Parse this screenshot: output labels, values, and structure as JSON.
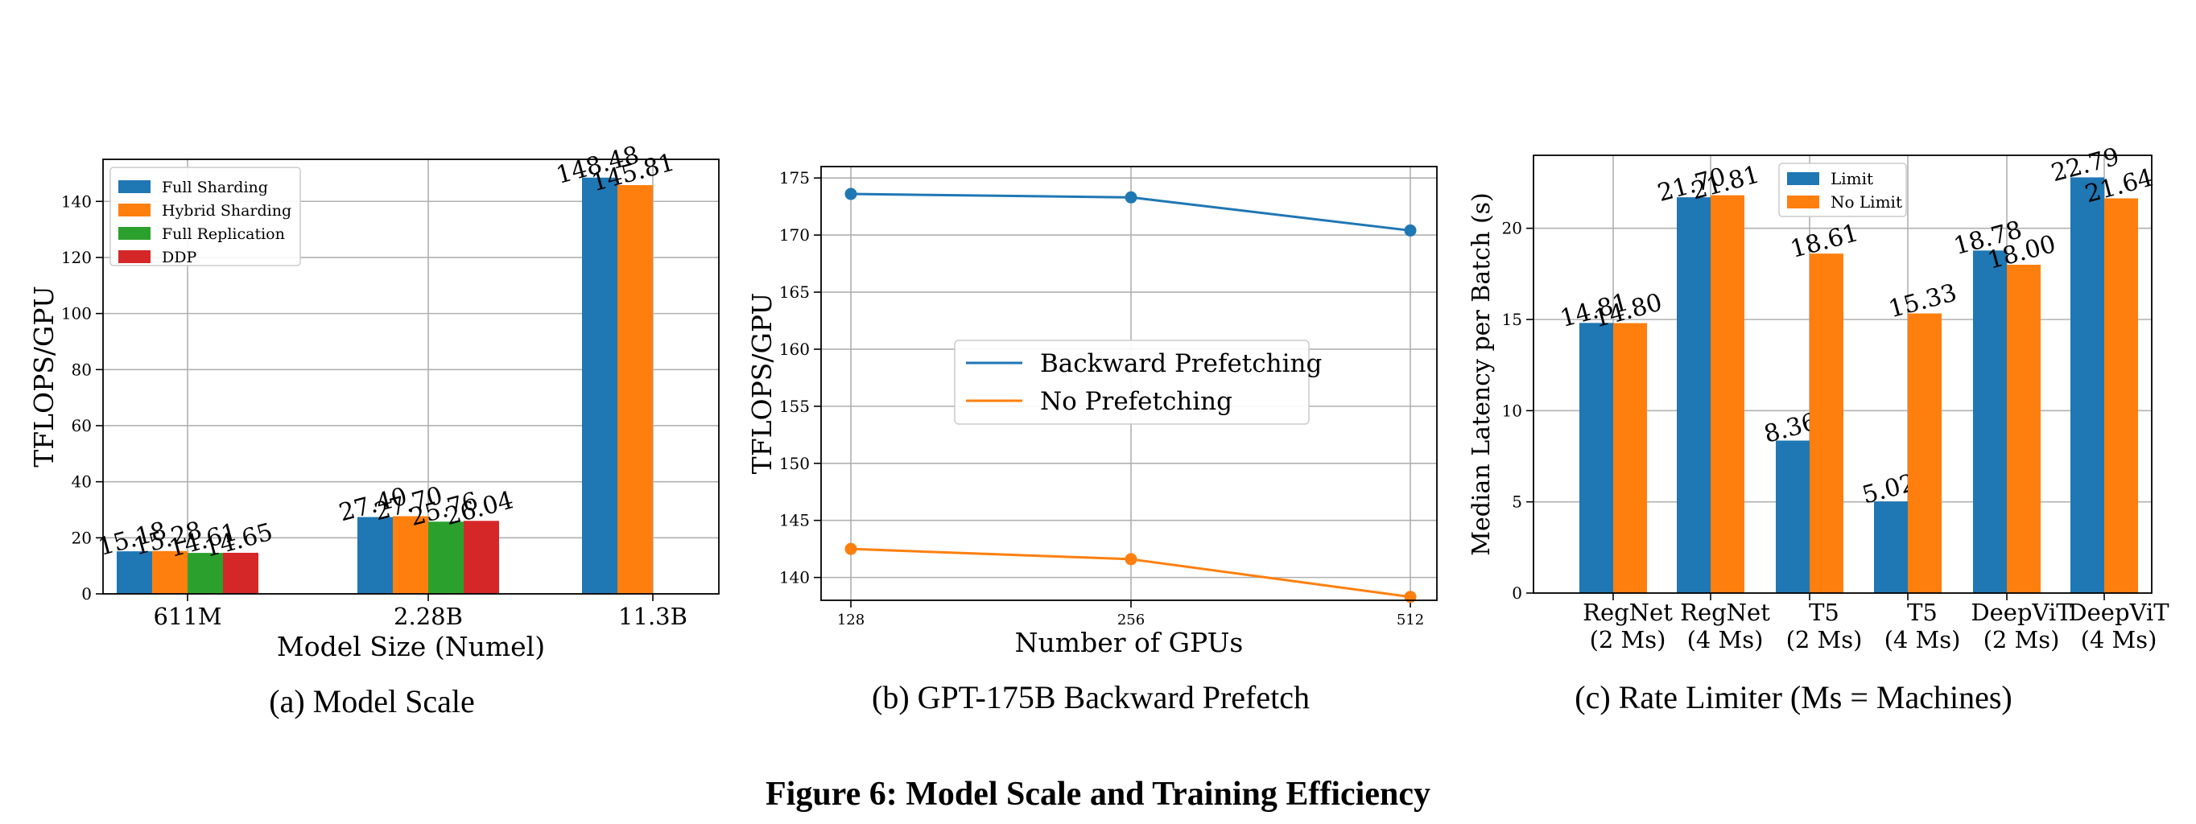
{
  "figure_caption": "Figure 6: Model Scale and Training Efficiency",
  "chart_data": [
    {
      "type": "bar",
      "caption": "(a) Model Scale",
      "xlabel": "Model Size (Numel)",
      "ylabel": "TFLOPS/GPU",
      "categories": [
        "611M",
        "2.28B",
        "11.3B"
      ],
      "ylim": [
        0,
        155
      ],
      "yticks": [
        0,
        20,
        40,
        60,
        80,
        100,
        120,
        140
      ],
      "grid": true,
      "legend_position": "top-left",
      "series": [
        {
          "name": "Full Sharding",
          "color": "#1f77b4",
          "values": [
            15.18,
            27.4,
            148.48
          ],
          "labels": [
            "15.18",
            "27.40",
            "148.48"
          ]
        },
        {
          "name": "Hybrid Sharding",
          "color": "#ff7f0e",
          "values": [
            15.28,
            27.7,
            145.81
          ],
          "labels": [
            "15.28",
            "27.70",
            "145.81"
          ]
        },
        {
          "name": "Full Replication",
          "color": "#2ca02c",
          "values": [
            14.61,
            25.76,
            null
          ],
          "labels": [
            "14.61",
            "25.76",
            ""
          ]
        },
        {
          "name": "DDP",
          "color": "#d62728",
          "values": [
            14.65,
            26.04,
            null
          ],
          "labels": [
            "14.65",
            "26.04",
            ""
          ]
        }
      ]
    },
    {
      "type": "line",
      "caption": "(b) GPT-175B Backward Prefetch",
      "xlabel": "Number of GPUs",
      "ylabel": "TFLOPS/GPU",
      "x": [
        128,
        256,
        512
      ],
      "xticklabels": [
        "128",
        "256",
        "512"
      ],
      "ylim": [
        138,
        176
      ],
      "yticks": [
        140,
        145,
        150,
        155,
        160,
        165,
        170,
        175
      ],
      "grid": true,
      "legend_position": "center",
      "series": [
        {
          "name": "Backward Prefetching",
          "color": "#1f77b4",
          "values": [
            173.6,
            173.3,
            170.4
          ]
        },
        {
          "name": "No Prefetching",
          "color": "#ff7f0e",
          "values": [
            142.5,
            141.6,
            138.3
          ]
        }
      ]
    },
    {
      "type": "bar",
      "caption": "(c) Rate Limiter (Ms = Machines)",
      "xlabel": "",
      "ylabel": "Median Latency per Batch (s)",
      "categories": [
        [
          "RegNet",
          "(2 Ms)"
        ],
        [
          "RegNet",
          "(4 Ms)"
        ],
        [
          "T5",
          "(2 Ms)"
        ],
        [
          "T5",
          "(4 Ms)"
        ],
        [
          "DeepViT",
          "(2 Ms)"
        ],
        [
          "DeepViT",
          "(4 Ms)"
        ]
      ],
      "ylim": [
        0,
        24
      ],
      "yticks": [
        0,
        5,
        10,
        15,
        20
      ],
      "grid": true,
      "legend_position": "top-center",
      "series": [
        {
          "name": "Limit",
          "color": "#1f77b4",
          "values": [
            14.81,
            21.7,
            8.36,
            5.02,
            18.78,
            22.79
          ],
          "labels": [
            "14.81",
            "21.70",
            "8.36",
            "5.02",
            "18.78",
            "22.79"
          ]
        },
        {
          "name": "No Limit",
          "color": "#ff7f0e",
          "values": [
            14.8,
            21.81,
            18.61,
            15.33,
            18.0,
            21.64
          ],
          "labels": [
            "14.80",
            "21.81",
            "18.61",
            "15.33",
            "18.00",
            "21.64"
          ]
        }
      ]
    }
  ]
}
